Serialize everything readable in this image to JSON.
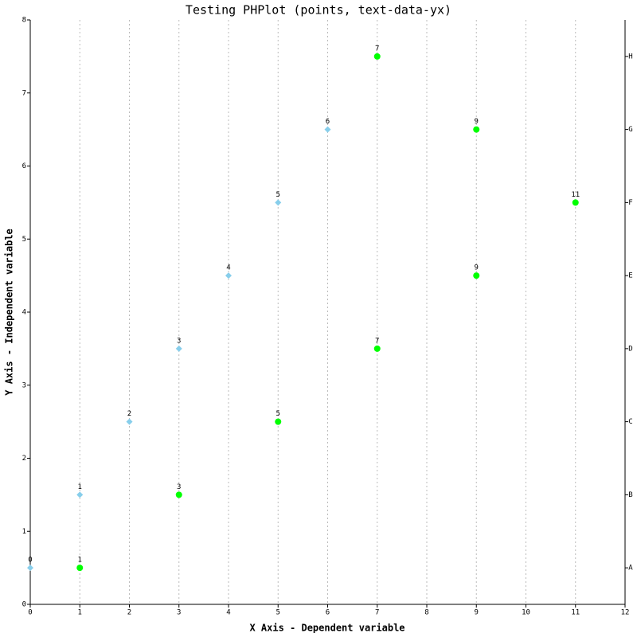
{
  "chart_data": {
    "type": "scatter",
    "title": "Testing PHPlot (points, text-data-yx)",
    "x_label": "X Axis - Dependent variable",
    "y_label": "Y Axis - Independent variable",
    "y_categories": [
      "A",
      "B",
      "C",
      "D",
      "E",
      "F",
      "G",
      "H"
    ],
    "series": [
      {
        "color": "#87ceeb",
        "marker": "diamond",
        "x": [
          0,
          1,
          2,
          3,
          4,
          5,
          6
        ],
        "values": [
          0.5,
          1.5,
          2.5,
          3.5,
          4.5,
          5.5,
          6.5
        ]
      },
      {
        "color": "#00ff00",
        "marker": "circle",
        "x": [
          1,
          3,
          5,
          7,
          9,
          11,
          9,
          7
        ],
        "values": [
          0.5,
          1.5,
          2.5,
          3.5,
          4.5,
          5.5,
          6.5,
          7.5
        ]
      }
    ],
    "xlim": [
      0,
      12
    ],
    "xticks": [
      0,
      1,
      2,
      3,
      4,
      5,
      6,
      7,
      8,
      9,
      10,
      11,
      12
    ],
    "ylim": [
      0,
      8
    ],
    "yticks": [
      0,
      1,
      2,
      3,
      4,
      5,
      6,
      7,
      8
    ],
    "grid": "x"
  }
}
